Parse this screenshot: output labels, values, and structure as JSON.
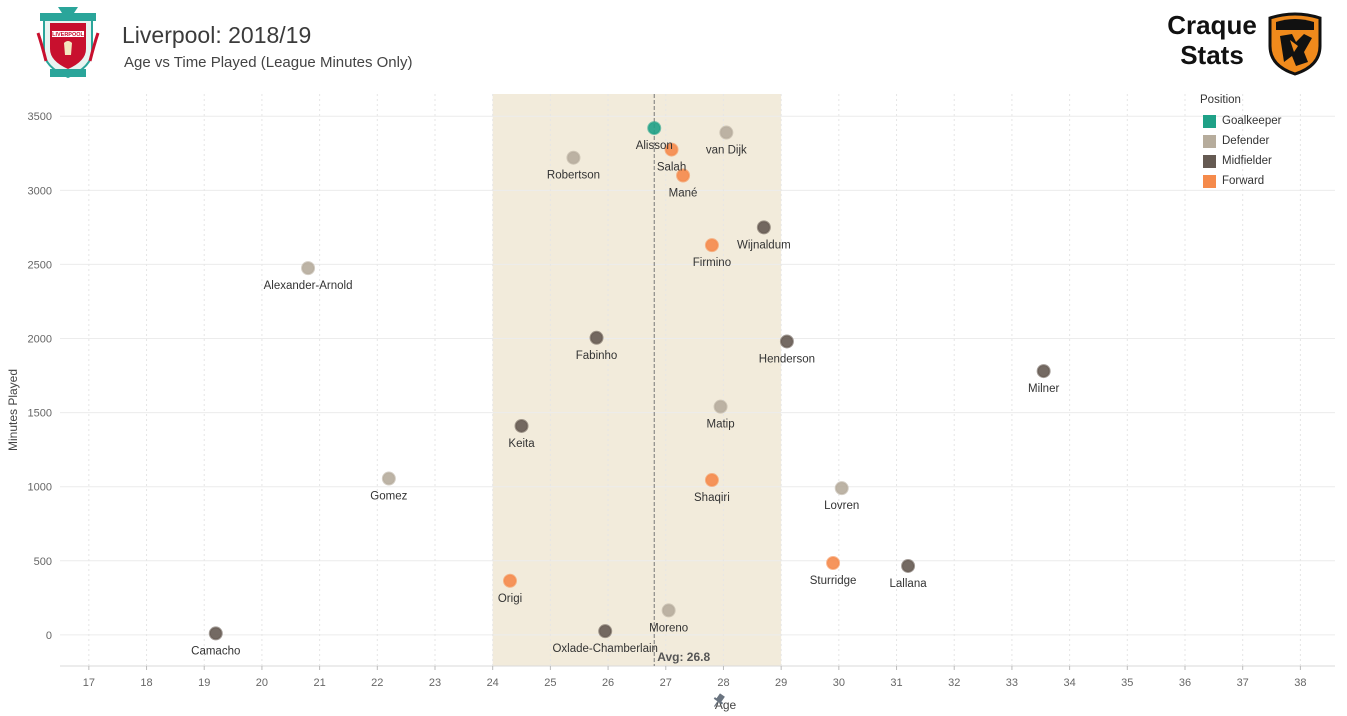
{
  "header": {
    "title": "Liverpool: 2018/19",
    "subtitle": "Age vs Time Played (League Minutes Only)",
    "brand_line1": "Craque",
    "brand_line2": "Stats",
    "crest_text": "LIVERPOOL"
  },
  "legend": {
    "title": "Position",
    "items": [
      {
        "label": "Goalkeeper",
        "color": "#1fa187"
      },
      {
        "label": "Defender",
        "color": "#b6ac9c"
      },
      {
        "label": "Midfielder",
        "color": "#655a52"
      },
      {
        "label": "Forward",
        "color": "#f58a4b"
      }
    ]
  },
  "chart_data": {
    "type": "scatter",
    "xlabel": "Age",
    "ylabel": "Minutes Played",
    "xlim": [
      16.5,
      38.6
    ],
    "ylim": [
      -210,
      3650
    ],
    "xticks": [
      17,
      18,
      19,
      20,
      21,
      22,
      23,
      24,
      25,
      26,
      27,
      28,
      29,
      30,
      31,
      32,
      33,
      34,
      35,
      36,
      37,
      38
    ],
    "yticks": [
      0,
      500,
      1000,
      1500,
      2000,
      2500,
      3000,
      3500
    ],
    "grid": true,
    "legend_position": "top-right",
    "band": {
      "x0": 24,
      "x1": 29
    },
    "avg_line": {
      "x": 26.8,
      "label": "Avg: 26.8"
    },
    "points": [
      {
        "name": "Alisson",
        "age": 26.8,
        "minutes": 3420,
        "position": "Goalkeeper"
      },
      {
        "name": "van Dijk",
        "age": 28.05,
        "minutes": 3390,
        "position": "Defender"
      },
      {
        "name": "Salah",
        "age": 27.1,
        "minutes": 3275,
        "position": "Forward"
      },
      {
        "name": "Robertson",
        "age": 25.4,
        "minutes": 3220,
        "position": "Defender"
      },
      {
        "name": "Mané",
        "age": 27.3,
        "minutes": 3100,
        "position": "Forward"
      },
      {
        "name": "Wijnaldum",
        "age": 28.7,
        "minutes": 2750,
        "position": "Midfielder"
      },
      {
        "name": "Firmino",
        "age": 27.8,
        "minutes": 2630,
        "position": "Forward"
      },
      {
        "name": "Alexander-Arnold",
        "age": 20.8,
        "minutes": 2475,
        "position": "Defender"
      },
      {
        "name": "Fabinho",
        "age": 25.8,
        "minutes": 2005,
        "position": "Midfielder"
      },
      {
        "name": "Henderson",
        "age": 29.1,
        "minutes": 1980,
        "position": "Midfielder"
      },
      {
        "name": "Milner",
        "age": 33.55,
        "minutes": 1780,
        "position": "Midfielder"
      },
      {
        "name": "Matip",
        "age": 27.95,
        "minutes": 1540,
        "position": "Defender"
      },
      {
        "name": "Keita",
        "age": 24.5,
        "minutes": 1410,
        "position": "Midfielder"
      },
      {
        "name": "Gomez",
        "age": 22.2,
        "minutes": 1055,
        "position": "Defender"
      },
      {
        "name": "Shaqiri",
        "age": 27.8,
        "minutes": 1045,
        "position": "Forward"
      },
      {
        "name": "Lovren",
        "age": 30.05,
        "minutes": 990,
        "position": "Defender"
      },
      {
        "name": "Sturridge",
        "age": 29.9,
        "minutes": 485,
        "position": "Forward"
      },
      {
        "name": "Lallana",
        "age": 31.2,
        "minutes": 465,
        "position": "Midfielder"
      },
      {
        "name": "Origi",
        "age": 24.3,
        "minutes": 365,
        "position": "Forward"
      },
      {
        "name": "Moreno",
        "age": 27.05,
        "minutes": 165,
        "position": "Defender"
      },
      {
        "name": "Oxlade-Chamberlain",
        "age": 25.95,
        "minutes": 25,
        "position": "Midfielder"
      },
      {
        "name": "Camacho",
        "age": 19.2,
        "minutes": 10,
        "position": "Midfielder"
      }
    ]
  }
}
